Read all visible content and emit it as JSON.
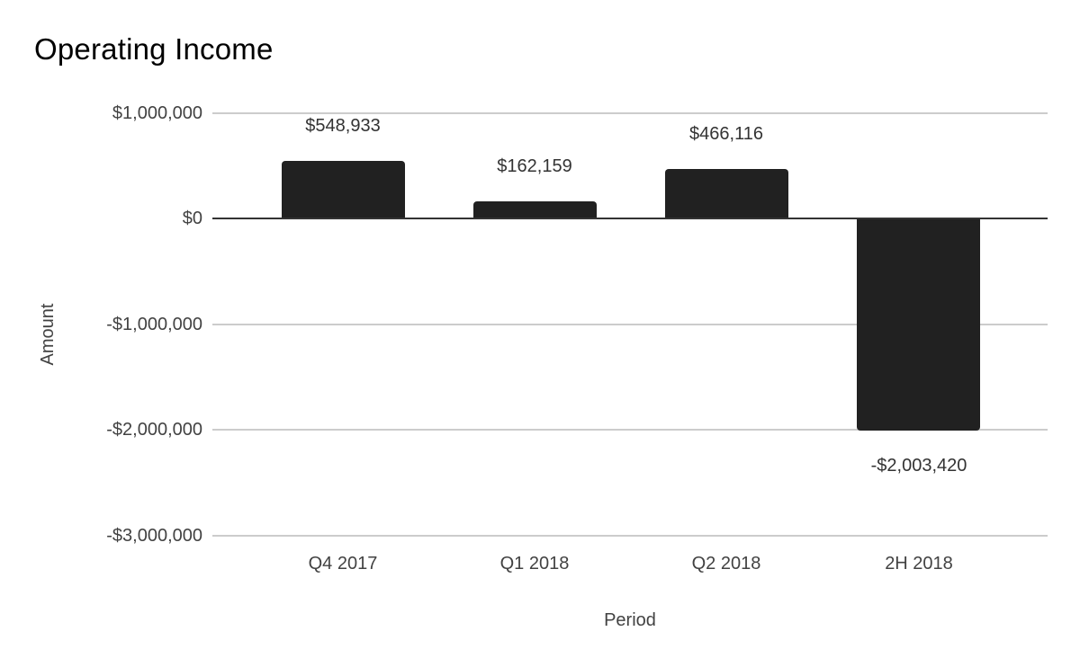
{
  "chart": {
    "title": "Operating Income",
    "y_axis_title": "Amount",
    "x_axis_title": "Period"
  },
  "colors": {
    "background": "#ffffff",
    "bar": "#212121",
    "gridline": "#cccccc",
    "zero_line": "#333333",
    "title_text": "#000000",
    "axis_text": "#424242",
    "data_label_text": "#333333"
  },
  "chart_data": {
    "type": "bar",
    "title": "Operating Income",
    "xlabel": "Period",
    "ylabel": "Amount",
    "categories": [
      "Q4 2017",
      "Q1 2018",
      "Q2 2018",
      "2H 2018"
    ],
    "values": [
      548933,
      162159,
      466116,
      -2003420
    ],
    "data_labels": [
      "$548,933",
      "$162,159",
      "$466,116",
      "-$2,003,420"
    ],
    "ylim": [
      -3000000,
      1000000
    ],
    "y_ticks": [
      {
        "value": 1000000,
        "label": "$1,000,000"
      },
      {
        "value": 0,
        "label": "$0"
      },
      {
        "value": -1000000,
        "label": "-$1,000,000"
      },
      {
        "value": -2000000,
        "label": "-$2,000,000"
      },
      {
        "value": -3000000,
        "label": "-$3,000,000"
      }
    ],
    "grid": true,
    "legend_position": "none",
    "bar_color": "#212121"
  }
}
